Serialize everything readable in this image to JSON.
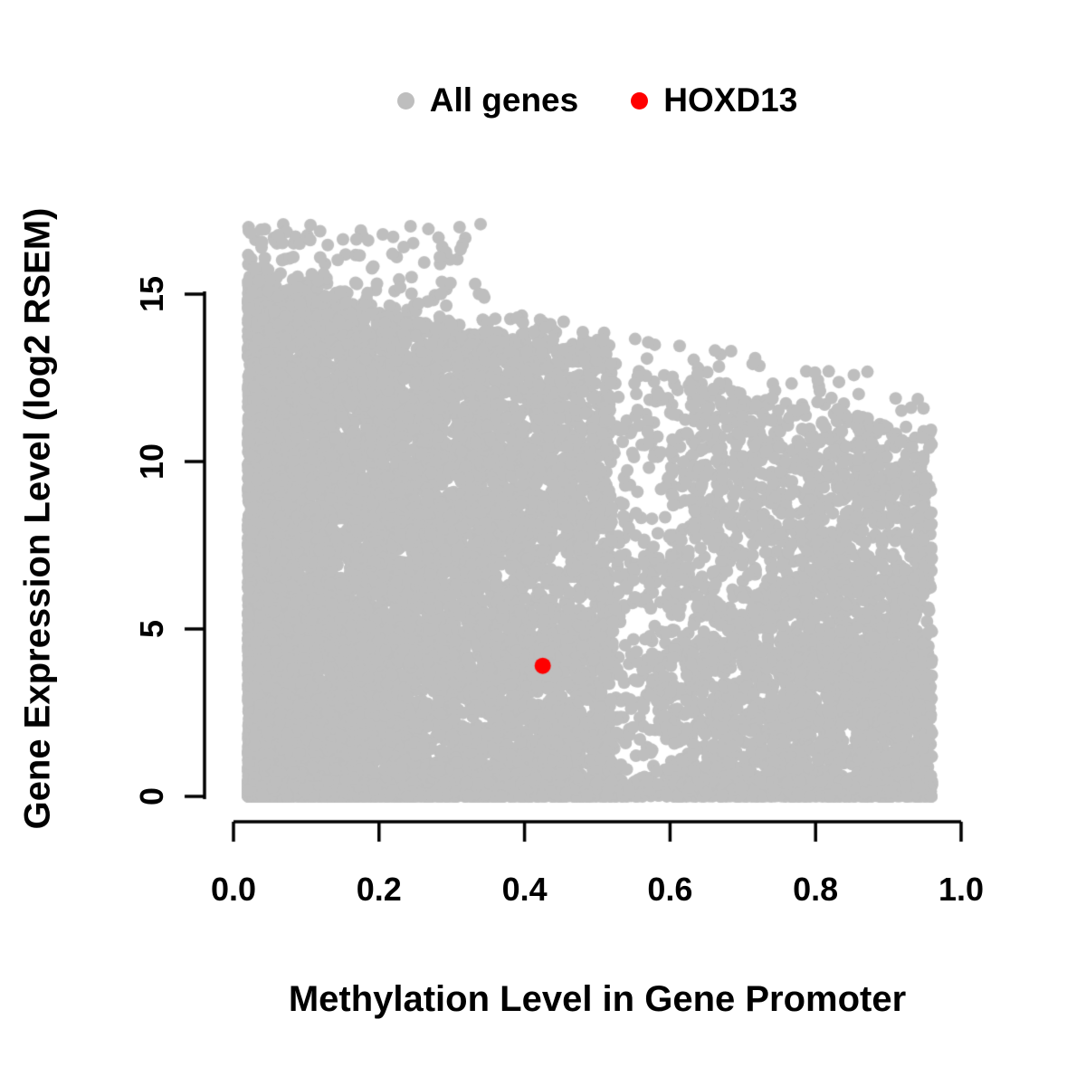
{
  "figure": {
    "background": "#FFFFFF",
    "text_color": "#000000",
    "axis_color": "#000000"
  },
  "chart_data": {
    "type": "scatter",
    "title": "",
    "xlabel": "Methylation Level in Gene Promoter",
    "ylabel": "Gene Expression Level (log2 RSEM)",
    "xlim": [
      0.0,
      1.0
    ],
    "ylim": [
      0,
      17.2
    ],
    "xticks": [
      0.0,
      0.2,
      0.4,
      0.6,
      0.8,
      1.0
    ],
    "xtick_labels": [
      "0.0",
      "0.2",
      "0.4",
      "0.6",
      "0.8",
      "1.0"
    ],
    "yticks": [
      0,
      5,
      10,
      15
    ],
    "ytick_labels": [
      "0",
      "5",
      "10",
      "15"
    ],
    "grid": false,
    "legend_position": "top-center",
    "legend": [
      {
        "label": "All genes",
        "color": "#BEBEBE",
        "marker": "filled-circle"
      },
      {
        "label": "HOXD13",
        "color": "#FF0000",
        "marker": "filled-circle"
      }
    ],
    "series": [
      {
        "name": "All genes",
        "color": "#BEBEBE",
        "marker": "filled-circle",
        "marker_radius_px": 7,
        "generated": true,
        "n_points": 16000,
        "seed": 42,
        "x_min": 0.02,
        "x_max": 0.96,
        "envelope_y_at_x0": 15.3,
        "envelope_slope": -4.6,
        "y_max_outlier": 17.1,
        "bottom_band_fraction": 0.22,
        "description": "Dense cloud of ~16,000 genes: promoter methylation skewed toward low values; expression spans 0-15 log2 RSEM at low methylation with an upper envelope declining to ~11 at high methylation; dense band of silent genes near y=0 across all methylation levels."
      },
      {
        "name": "HOXD13",
        "color": "#FF0000",
        "marker": "filled-circle",
        "marker_radius_px": 9,
        "points": [
          {
            "x": 0.425,
            "y": 3.9
          }
        ]
      }
    ]
  }
}
